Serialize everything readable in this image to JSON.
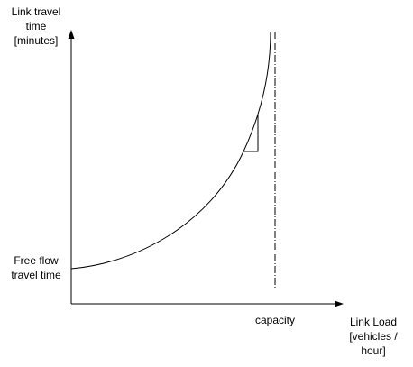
{
  "y_axis_label": [
    "Link travel",
    "time",
    "[minutes]"
  ],
  "y_origin_label": [
    "Free flow",
    "travel time"
  ],
  "x_marker_label": "capacity",
  "x_axis_label": [
    "Link Load",
    "[vehicles /",
    "hour]"
  ]
}
